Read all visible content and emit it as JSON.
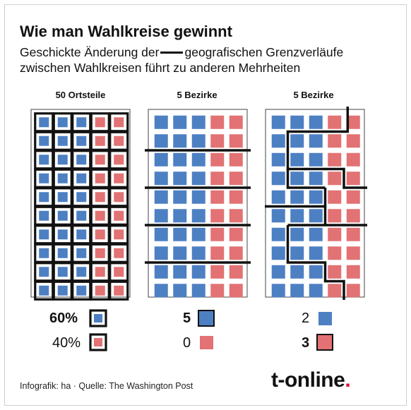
{
  "title": "Wie man Wahlkreise gewinnt",
  "subtitle_part1": "Geschickte Änderung der",
  "subtitle_part2": "geografischen Grenzverläufe zwischen Wahlkreisen führt zu anderen Mehrheiten",
  "panels": [
    {
      "heading": "50 Ortsteile",
      "legend": [
        {
          "value": "60%",
          "color": "blue",
          "bold": true
        },
        {
          "value": "40%",
          "color": "red",
          "bold": false
        }
      ]
    },
    {
      "heading": "5 Bezirke",
      "legend": [
        {
          "value": "5",
          "color": "blue",
          "bold": true
        },
        {
          "value": "0",
          "color": "red",
          "bold": false
        }
      ]
    },
    {
      "heading": "5 Bezirke",
      "legend": [
        {
          "value": "2",
          "color": "blue",
          "bold": false
        },
        {
          "value": "3",
          "color": "red",
          "bold": true
        }
      ]
    }
  ],
  "grid": {
    "rows": 10,
    "cols": 5,
    "blue_cols": 3,
    "red_cols": 2
  },
  "colors": {
    "blue": "#4d80c3",
    "red": "#e27273",
    "border": "#111111"
  },
  "footer": "Infografik: ha  ·  Quelle: The Washington Post",
  "logo": {
    "text": "t-online",
    "dot": "."
  }
}
